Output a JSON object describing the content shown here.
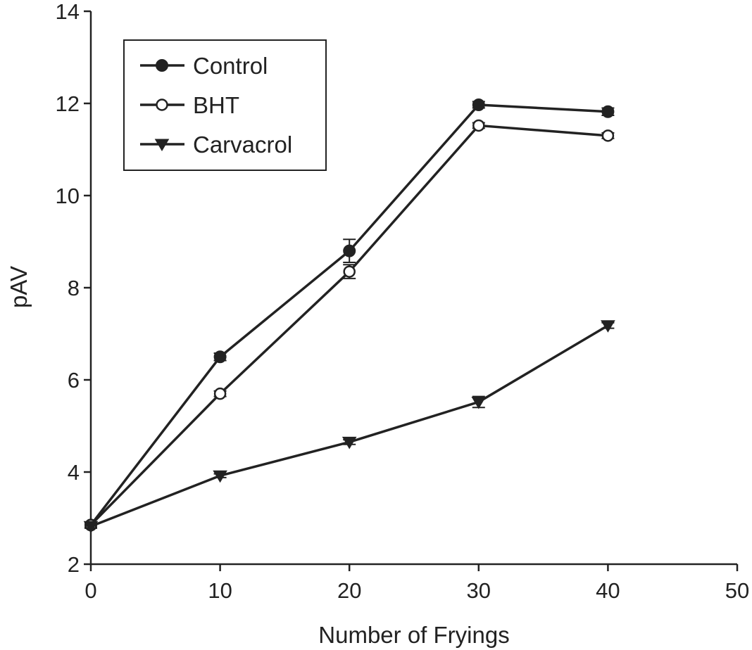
{
  "chart_data": {
    "type": "line",
    "title": "",
    "xlabel": "Number of Fryings",
    "ylabel": "pAV",
    "xlim": [
      0,
      50
    ],
    "ylim": [
      2,
      14
    ],
    "xticks": [
      "0",
      "10",
      "20",
      "30",
      "40",
      "50"
    ],
    "yticks": [
      "2",
      "4",
      "6",
      "8",
      "10",
      "12",
      "14"
    ],
    "grid": false,
    "legend_position": "top-left",
    "x": [
      0,
      10,
      20,
      30,
      40
    ],
    "series": [
      {
        "name": "Control",
        "marker": "filled-circle",
        "values": [
          2.85,
          6.5,
          8.8,
          11.97,
          11.82
        ],
        "errors": [
          0.05,
          0.08,
          0.25,
          0.07,
          0.08
        ]
      },
      {
        "name": "BHT",
        "marker": "open-circle",
        "values": [
          2.85,
          5.7,
          8.35,
          11.52,
          11.3
        ],
        "errors": [
          0.05,
          0.06,
          0.15,
          0.06,
          0.06
        ]
      },
      {
        "name": "Carvacrol",
        "marker": "filled-triangle-down",
        "values": [
          2.82,
          3.92,
          4.65,
          5.52,
          7.18
        ],
        "errors": [
          0.04,
          0.04,
          0.05,
          0.12,
          0.06
        ]
      }
    ],
    "colors": {
      "line": "#222222",
      "marker_fill": "#222222",
      "open_fill": "#ffffff"
    }
  }
}
